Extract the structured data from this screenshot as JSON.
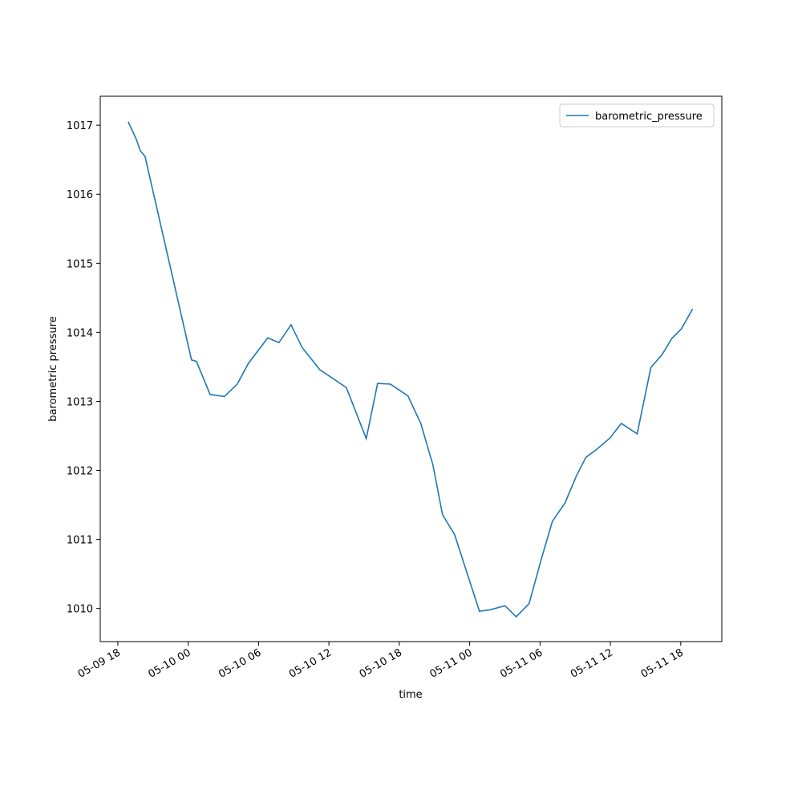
{
  "chart_data": {
    "type": "line",
    "xlabel": "time",
    "ylabel": "barometric pressure",
    "x": [
      "05-09 18:53",
      "05-09 19:34",
      "05-09 19:55",
      "05-09 20:19",
      "05-10 00:17",
      "05-10 00:42",
      "05-10 01:52",
      "05-10 03:05",
      "05-10 04:11",
      "05-10 05:08",
      "05-10 06:47",
      "05-10 07:44",
      "05-10 08:46",
      "05-10 09:43",
      "05-10 11:13",
      "05-10 13:29",
      "05-10 15:11",
      "05-10 16:09",
      "05-10 17:14",
      "05-10 18:44",
      "05-10 19:50",
      "05-10 20:52",
      "05-10 21:41",
      "05-10 22:43",
      "05-11 00:50",
      "05-11 01:43",
      "05-11 03:01",
      "05-11 03:58",
      "05-11 05:04",
      "05-11 06:05",
      "05-11 07:03",
      "05-11 08:08",
      "05-11 09:06",
      "05-11 09:55",
      "05-11 10:52",
      "05-11 11:58",
      "05-11 12:56",
      "05-11 14:17",
      "05-11 15:27",
      "05-11 16:25",
      "05-11 17:14",
      "05-11 18:03",
      "05-11 19:01"
    ],
    "series": [
      {
        "name": "barometric_pressure",
        "color": "#1f77b4",
        "values": [
          1017.05,
          1016.8,
          1016.63,
          1016.55,
          1013.6,
          1013.58,
          1013.1,
          1013.07,
          1013.25,
          1013.55,
          1013.92,
          1013.85,
          1014.11,
          1013.78,
          1013.46,
          1013.2,
          1012.46,
          1013.26,
          1013.25,
          1013.08,
          1012.68,
          1012.08,
          1011.36,
          1011.07,
          1009.96,
          1009.98,
          1010.04,
          1009.88,
          1010.07,
          1010.7,
          1011.26,
          1011.53,
          1011.92,
          1012.19,
          1012.31,
          1012.47,
          1012.68,
          1012.53,
          1013.49,
          1013.68,
          1013.91,
          1014.05,
          1014.34
        ]
      }
    ],
    "xlim": [
      "05-09 16:30",
      "05-11 21:30"
    ],
    "xticks": [
      "05-09 18",
      "05-10 00",
      "05-10 06",
      "05-10 12",
      "05-10 18",
      "05-11 00",
      "05-11 06",
      "05-11 12",
      "05-11 18"
    ],
    "ylim": [
      1009.52,
      1017.42
    ],
    "yticks": [
      1010,
      1011,
      1012,
      1013,
      1014,
      1015,
      1016,
      1017
    ],
    "legend": "upper right",
    "grid": false
  }
}
